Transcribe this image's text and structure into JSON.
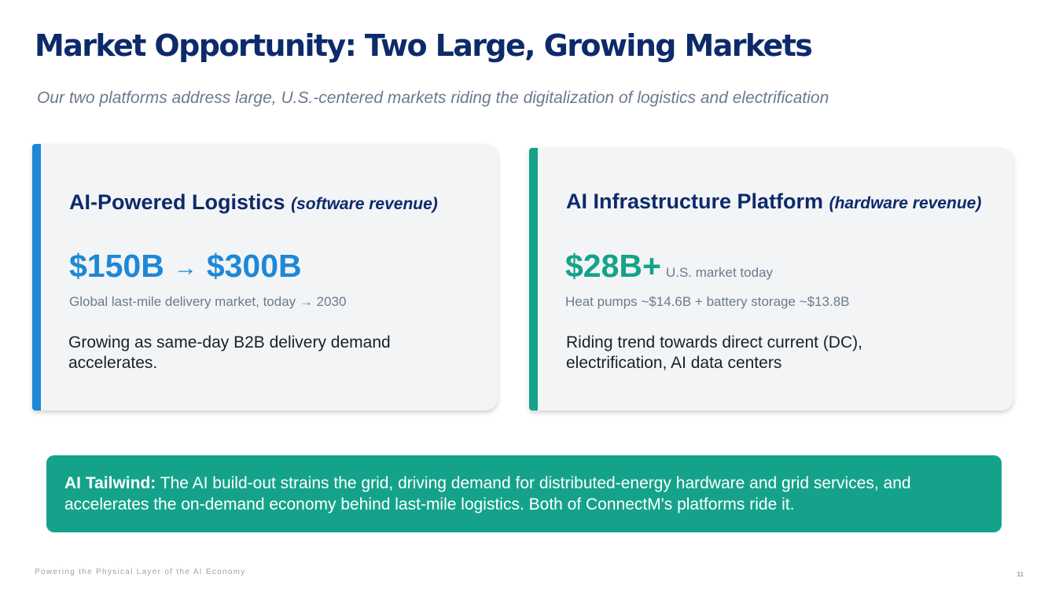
{
  "slide": {
    "title": "Market Opportunity: Two Large, Growing Markets",
    "subtitle": "Our two platforms address large, U.S.-centered markets riding the digitalization of logistics and electrification"
  },
  "cards": {
    "logistics": {
      "title": "AI-Powered Logistics",
      "title_paren": "(software revenue)",
      "value_from": "$150B",
      "arrow": "→",
      "value_to": "$300B",
      "caption": "Global last-mile delivery market, today → 2030",
      "body": "Growing as same-day B2B delivery demand accelerates.",
      "accent_color": "#1e88d6"
    },
    "infrastructure": {
      "title": "AI Infrastructure Platform",
      "title_paren": "(hardware revenue)",
      "value": "$28B+",
      "value_note": "U.S. market today",
      "caption": "Heat pumps ~$14.6B + battery storage ~$13.8B",
      "body": "Riding trend towards direct current (DC), electrification, AI data centers",
      "accent_color": "#14a38a"
    }
  },
  "tailwind": {
    "label": "AI Tailwind:",
    "text": "The AI build-out strains the grid, driving demand for distributed-energy hardware and grid services, and accelerates the on-demand economy behind last-mile logistics. Both of ConnectM's platforms ride it.",
    "background_color": "#14a38a"
  },
  "footer": {
    "tagline": "Powering the Physical Layer of the AI Economy",
    "page_number": "11"
  },
  "colors": {
    "title": "#0d2a6b",
    "muted": "#6b7a8d",
    "card_background": "#f3f4f6"
  }
}
